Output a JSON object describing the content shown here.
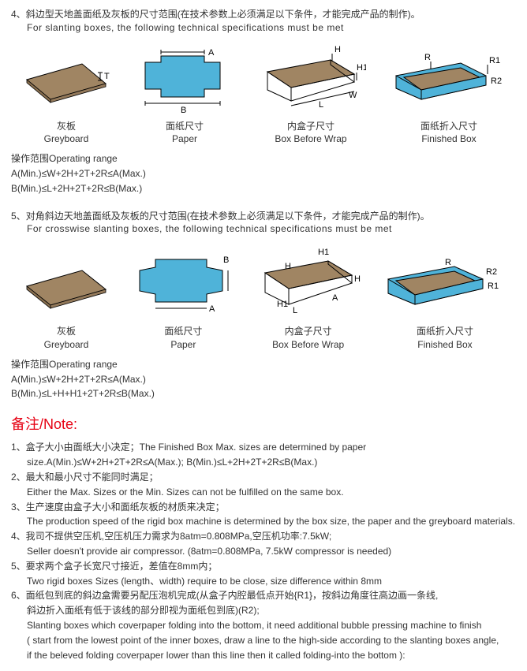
{
  "section4": {
    "num": "4、",
    "title_cn": "斜边型天地盖面纸及灰板的尺寸范围(在技术参数上必须满足以下条件，才能完成产品的制作)。",
    "title_en": "For slanting boxes, the following technical specifications must be met",
    "diagrams": {
      "greyboard": {
        "label_cn": "灰板",
        "label_en": "Greyboard",
        "dim_t": "T"
      },
      "paper": {
        "label_cn": "面纸尺寸",
        "label_en": "Paper",
        "dim_a": "A",
        "dim_b": "B"
      },
      "box_before": {
        "label_cn": "内盒子尺寸",
        "label_en": "Box Before Wrap",
        "dim_h": "H",
        "dim_h1": "H1",
        "dim_l": "L",
        "dim_w": "W"
      },
      "finished": {
        "label_cn": "面纸折入尺寸",
        "label_en": "Finished Box",
        "dim_r": "R",
        "dim_r1": "R1",
        "dim_r2": "R2"
      }
    },
    "op_title": "操作范围Operating range",
    "op_a": "A(Min.)≤W+2H+2T+2R≤A(Max.)",
    "op_b": "B(Min.)≤L+2H+2T+2R≤B(Max.)"
  },
  "section5": {
    "num": "5、",
    "title_cn": "对角斜边天地盖面纸及灰板的尺寸范围(在技术参数上必须满足以下条件，才能完成产品的制作)。",
    "title_en": "For crosswise slanting boxes, the following technical specifications must be met",
    "diagrams": {
      "greyboard": {
        "label_cn": "灰板",
        "label_en": "Greyboard"
      },
      "paper": {
        "label_cn": "面纸尺寸",
        "label_en": "Paper",
        "dim_a": "A",
        "dim_b": "B"
      },
      "box_before": {
        "label_cn": "内盒子尺寸",
        "label_en": "Box Before Wrap",
        "dim_h": "H",
        "dim_h1": "H1",
        "dim_h1b": "H1",
        "dim_l": "L",
        "dim_a2": "A"
      },
      "finished": {
        "label_cn": "面纸折入尺寸",
        "label_en": "Finished Box",
        "dim_r": "R",
        "dim_r1": "R1",
        "dim_r2": "R2"
      }
    },
    "op_title": "操作范围Operating range",
    "op_a": "A(Min.)≤W+2H+2T+2R≤A(Max.)",
    "op_b": "B(Min.)≤L+H+H1+2T+2R≤B(Max.)"
  },
  "notes": {
    "heading": "备注/Note:",
    "items": [
      {
        "cn": "1、盒子大小由面纸大小决定；The Finished Box Max. sizes are determined by paper",
        "sub": [
          "size.A(Min.)≤W+2H+2T+2R≤A(Max.); B(Min.)≤L+2H+2T+2R≤B(Max.)"
        ]
      },
      {
        "cn": "2、最大和最小尺寸不能同时满足；",
        "sub": [
          "Either the Max. Sizes or the Min. Sizes can not be fulfilled on the same box."
        ]
      },
      {
        "cn": "3、生产速度由盒子大小和面纸灰板的材质来决定；",
        "sub": [
          "The production speed of the rigid box machine is determined by the box size, the paper and the greyboard materials."
        ]
      },
      {
        "cn": "4、我司不提供空压机,空压机压力需求为8atm=0.808MPa,空压机功率:7.5kW;",
        "sub": [
          "Seller doesn't provide air compressor. (8atm=0.808MPa, 7.5kW compressor is needed)"
        ]
      },
      {
        "cn": "5、要求两个盒子长宽尺寸接近，差值在8mm内；",
        "sub": [
          "Two rigid boxes Sizes (length、width) require to be close, size difference within 8mm"
        ]
      },
      {
        "cn": "6、面纸包到底的斜边盒需要另配压泡机完成(从盒子内腔最低点开始{R1}，按斜边角度往高边画一条线,",
        "sub": [
          "斜边折入面纸有低于该线的部分即视为面纸包到底)(R2);",
          "Slanting boxes which coverpaper folding into the bottom, it need additional bubble pressing machine to finish",
          "( start from the lowest point of the inner boxes, draw a line to the high-side according to the slanting boxes angle,",
          "if the beleved folding coverpaper lower than this line then it called folding-into the bottom ):"
        ]
      }
    ]
  },
  "colors": {
    "blue": "#4fb3d9",
    "brown": "#a08563",
    "stroke": "#000000",
    "red": "#e60012",
    "text": "#333333"
  }
}
